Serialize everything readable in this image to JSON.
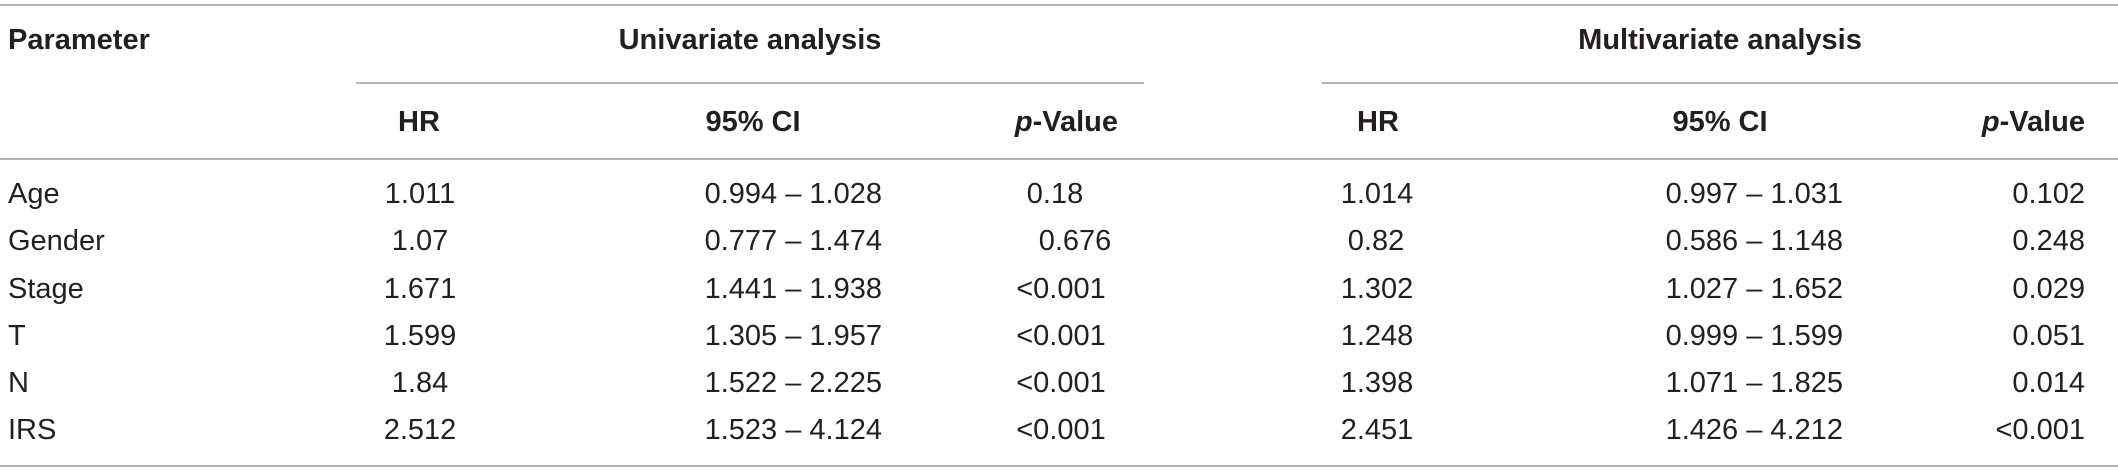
{
  "table": {
    "headers": {
      "parameter": "Parameter",
      "univariate_group": "Univariate analysis",
      "multivariate_group": "Multivariate analysis",
      "hr": "HR",
      "ci": "95% CI",
      "p_italic": "p",
      "p_suffix": "-Value"
    },
    "rows": [
      {
        "parameter": "Age",
        "uni_hr": "1.011",
        "uni_ci": "0.994 – 1.028",
        "uni_p": "0.18",
        "multi_hr": "1.014",
        "multi_ci": "0.997 – 1.031",
        "multi_p": "0.102"
      },
      {
        "parameter": "Gender",
        "uni_hr": "1.07",
        "uni_ci": "0.777 – 1.474",
        "uni_p": "0.676",
        "multi_hr": "0.82",
        "multi_ci": "0.586 – 1.148",
        "multi_p": "0.248"
      },
      {
        "parameter": "Stage",
        "uni_hr": "1.671",
        "uni_ci": "1.441 – 1.938",
        "uni_p": "<0.001",
        "multi_hr": "1.302",
        "multi_ci": "1.027 – 1.652",
        "multi_p": "0.029"
      },
      {
        "parameter": "T",
        "uni_hr": "1.599",
        "uni_ci": "1.305 – 1.957",
        "uni_p": "<0.001",
        "multi_hr": "1.248",
        "multi_ci": "0.999 – 1.599",
        "multi_p": "0.051"
      },
      {
        "parameter": "N",
        "uni_hr": "1.84",
        "uni_ci": "1.522 – 2.225",
        "uni_p": "<0.001",
        "multi_hr": "1.398",
        "multi_ci": "1.071 – 1.825",
        "multi_p": "0.014"
      },
      {
        "parameter": "IRS",
        "uni_hr": "2.512",
        "uni_ci": "1.523 – 4.124",
        "uni_p": "<0.001",
        "multi_hr": "2.451",
        "multi_ci": "1.426 – 4.212",
        "multi_p": "<0.001"
      }
    ]
  }
}
